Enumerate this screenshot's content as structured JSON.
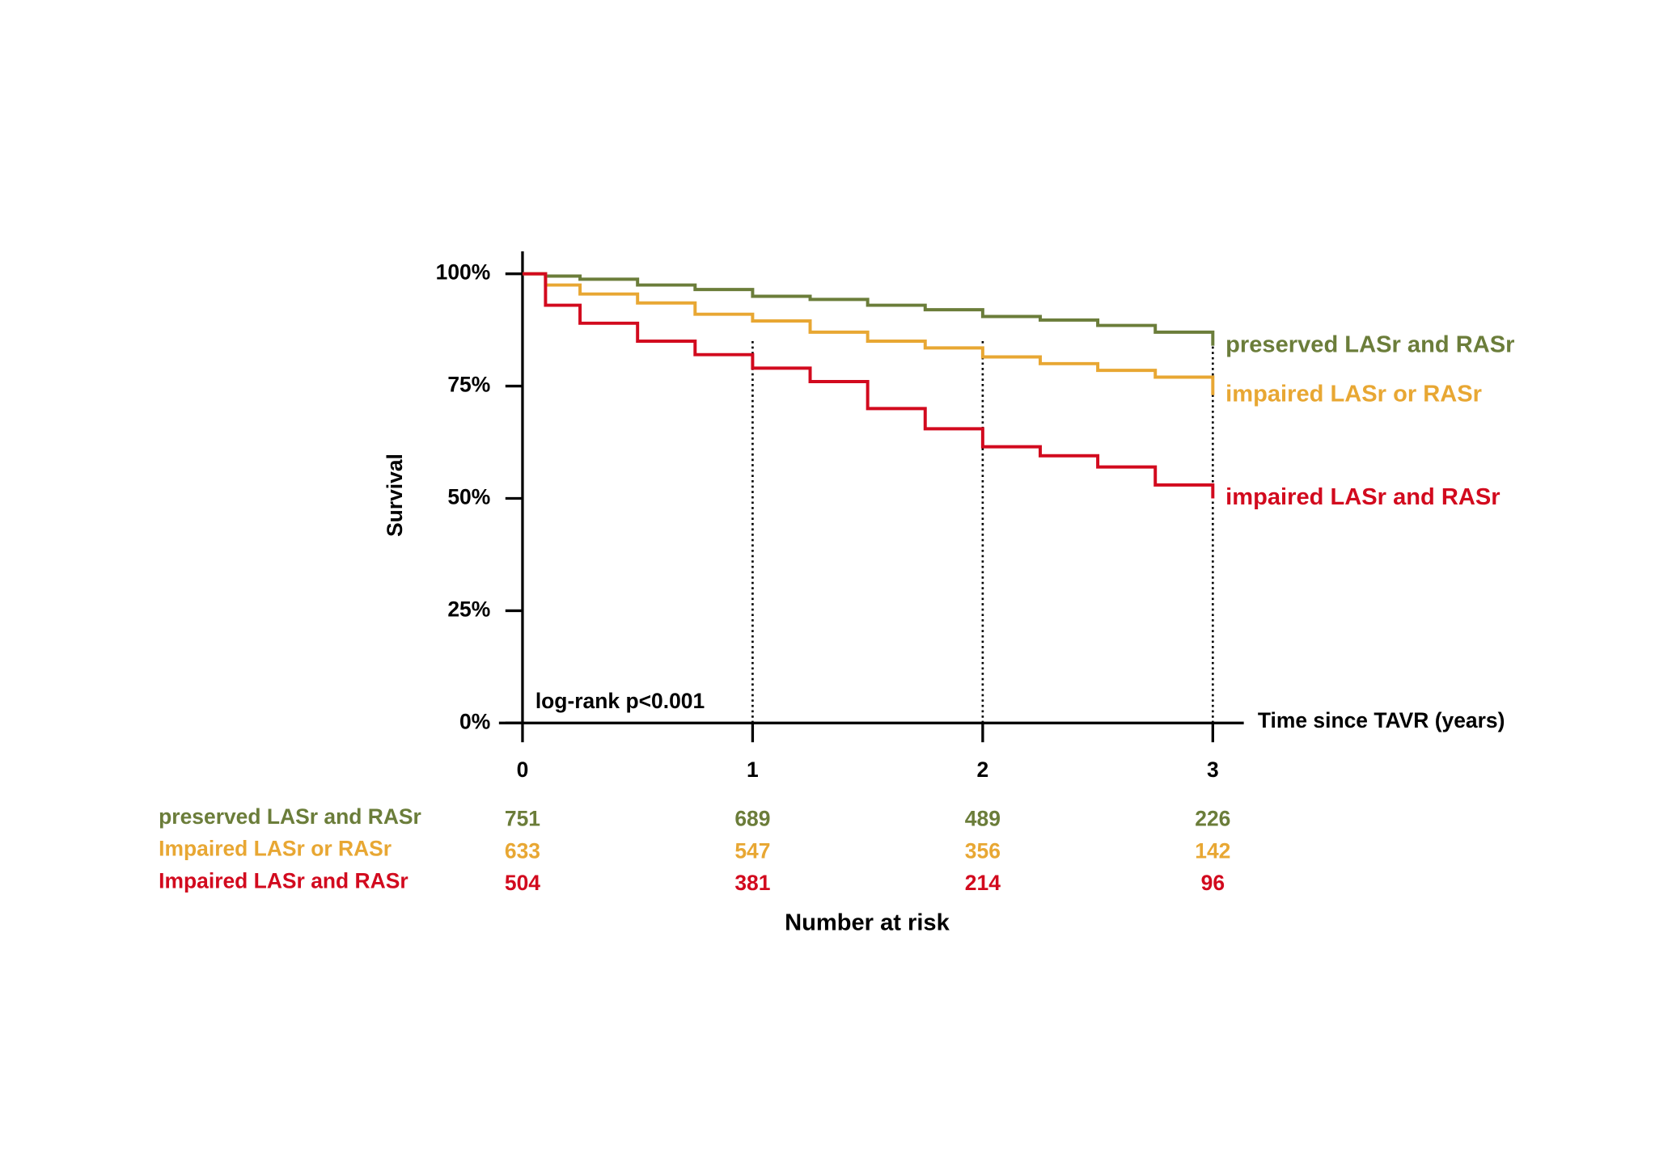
{
  "chart_data": {
    "type": "line",
    "step": true,
    "y_label": "Survival",
    "x_label": "Time since TAVR (years)",
    "annotation": "log-rank p<0.001",
    "x": [
      0,
      0.1,
      0.25,
      0.5,
      0.75,
      1,
      1.25,
      1.5,
      1.75,
      2,
      2.25,
      2.5,
      2.75,
      3
    ],
    "series": [
      {
        "name": "preserved LASr and RASr",
        "color": "#6b7d3a",
        "values": [
          100,
          99.5,
          98.8,
          97.5,
          96.5,
          95,
          94.3,
          93,
          92,
          90.5,
          89.7,
          88.5,
          87,
          84
        ]
      },
      {
        "name": "impaired LASr or RASr",
        "color": "#e8a733",
        "values": [
          100,
          97.5,
          95.5,
          93.5,
          91,
          89.5,
          87,
          85,
          83.5,
          81.5,
          80,
          78.5,
          77,
          73
        ]
      },
      {
        "name": "impaired LASr and RASr",
        "color": "#d20a1e",
        "values": [
          100,
          93,
          89,
          85,
          82,
          79,
          76,
          70,
          65.5,
          61.5,
          59.5,
          57,
          53,
          50
        ]
      }
    ],
    "xlim": [
      -0.1,
      3.13
    ],
    "ylim": [
      0,
      105
    ],
    "xticks": [
      0,
      1,
      2,
      3
    ],
    "yticks": [
      {
        "value": 0,
        "label": "0%"
      },
      {
        "value": 25,
        "label": "25%"
      },
      {
        "value": 50,
        "label": "50%"
      },
      {
        "value": 75,
        "label": "75%"
      },
      {
        "value": 100,
        "label": "100%"
      }
    ],
    "grid": true,
    "risk_table": {
      "title": "Number at risk",
      "rows": [
        {
          "label": "preserved LASr and RASr",
          "color": "#6b7d3a",
          "values": [
            751,
            689,
            489,
            226
          ]
        },
        {
          "label": "Impaired LASr or RASr",
          "color": "#e8a733",
          "values": [
            633,
            547,
            356,
            142
          ]
        },
        {
          "label": "Impaired LASr and RASr",
          "color": "#d20a1e",
          "values": [
            504,
            381,
            214,
            96
          ]
        }
      ]
    }
  }
}
